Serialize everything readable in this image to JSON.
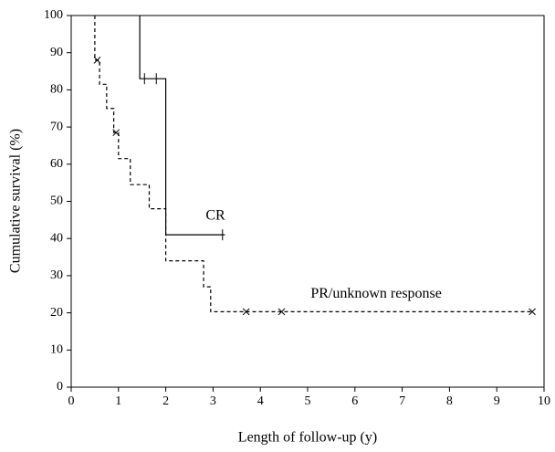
{
  "chart_data": {
    "type": "step",
    "xlabel": "Length of follow-up (y)",
    "ylabel": "Cumulative survival (%)",
    "xlim": [
      0,
      10
    ],
    "ylim": [
      0,
      100
    ],
    "xticks": [
      0,
      1,
      2,
      3,
      4,
      5,
      6,
      7,
      8,
      9,
      10
    ],
    "yticks": [
      0,
      10,
      20,
      30,
      40,
      50,
      60,
      70,
      80,
      90,
      100
    ],
    "series": [
      {
        "name": "CR",
        "color": "#000000",
        "dash": false,
        "censor_marker": "|",
        "x": [
          1.45,
          1.45,
          2.0,
          3.25
        ],
        "values": [
          100,
          83,
          41,
          41
        ],
        "censored": {
          "x": [
            1.55,
            1.8,
            3.2
          ],
          "values": [
            83,
            83,
            41
          ]
        },
        "label_at": [
          3.05,
          46
        ]
      },
      {
        "name": "PR/unknown response",
        "color": "#000000",
        "dash": true,
        "censor_marker": "x",
        "x": [
          0.5,
          0.5,
          0.6,
          0.75,
          0.9,
          1.0,
          1.25,
          1.65,
          2.0,
          2.8,
          2.95,
          9.75
        ],
        "values": [
          100,
          88,
          81.5,
          75,
          68.5,
          61.5,
          54.5,
          48,
          34,
          27,
          20.3,
          20.3
        ],
        "censored": {
          "x": [
            0.55,
            0.95,
            3.7,
            4.45,
            9.75
          ],
          "values": [
            88,
            68.5,
            20.3,
            20.3,
            20.3
          ]
        },
        "label_at": [
          6.45,
          25
        ]
      }
    ]
  }
}
